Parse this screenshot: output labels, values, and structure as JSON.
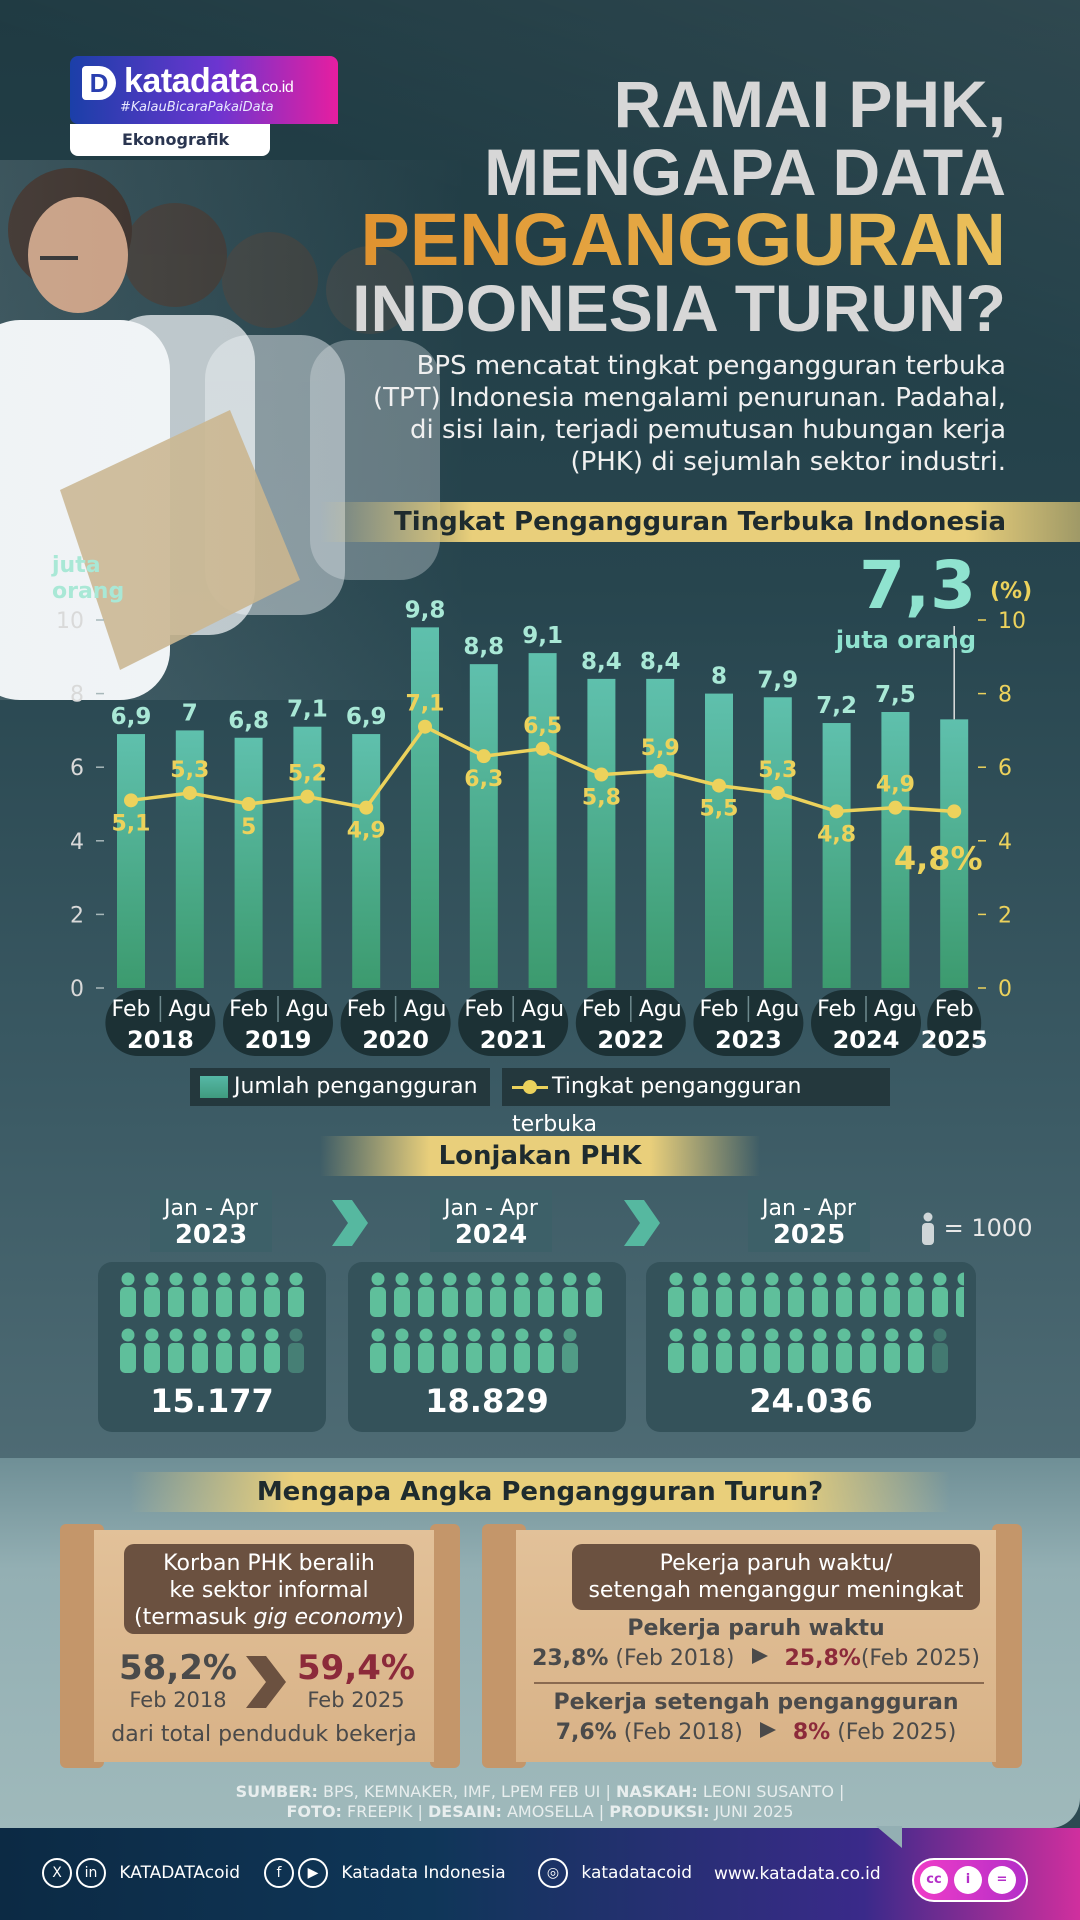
{
  "brand": {
    "name": "katadata",
    "tld": ".co.id",
    "tagline": "#KalauBicaraPakaiData",
    "section": "Ekonografik",
    "mark": "D"
  },
  "title": {
    "line1": "RAMAI PHK,",
    "line2": "MENGAPA DATA",
    "line3": "PENGANGGURAN",
    "line4": "INDONESIA TURUN?"
  },
  "intro": "BPS mencatat tingkat pengangguran terbuka (TPT) Indonesia mengalami penurunan. Padahal, di sisi lain, terjadi pemutusan hubungan kerja (PHK) di sejumlah sektor industri.",
  "chart_data": {
    "type": "bar",
    "title": "Tingkat Pengangguran Terbuka Indonesia",
    "ylabel_left": "juta orang",
    "ylabel_right": "(%)",
    "ylim": [
      0,
      10
    ],
    "yticks": [
      0,
      2,
      4,
      6,
      8,
      10
    ],
    "categories": [
      "Feb 2018",
      "Agu 2018",
      "Feb 2019",
      "Agu 2019",
      "Feb 2020",
      "Agu 2020",
      "Feb 2021",
      "Agu 2021",
      "Feb 2022",
      "Agu 2022",
      "Feb 2023",
      "Agu 2023",
      "Feb 2024",
      "Agu 2024",
      "Feb 2025"
    ],
    "months": [
      "Feb",
      "Agu",
      "Feb",
      "Agu",
      "Feb",
      "Agu",
      "Feb",
      "Agu",
      "Feb",
      "Agu",
      "Feb",
      "Agu",
      "Feb",
      "Agu",
      "Feb"
    ],
    "years": [
      "2018",
      "2019",
      "2020",
      "2021",
      "2022",
      "2023",
      "2024",
      "2025"
    ],
    "series": [
      {
        "name": "Jumlah pengangguran",
        "type": "bar",
        "values": [
          6.9,
          7,
          6.8,
          7.1,
          6.9,
          9.8,
          8.8,
          9.1,
          8.4,
          8.4,
          8,
          7.9,
          7.2,
          7.5,
          7.3
        ],
        "labels": [
          "6,9",
          "7",
          "6,8",
          "7,1",
          "6,9",
          "9,8",
          "8,8",
          "9,1",
          "8,4",
          "8,4",
          "8",
          "7,9",
          "7,2",
          "7,5",
          ""
        ]
      },
      {
        "name": "Tingkat pengangguran terbuka",
        "type": "line",
        "values": [
          5.1,
          5.3,
          5,
          5.2,
          4.9,
          7.1,
          6.3,
          6.5,
          5.8,
          5.9,
          5.5,
          5.3,
          4.8,
          4.9,
          4.8
        ],
        "labels": [
          "5,1",
          "5,3",
          "5",
          "5,2",
          "4,9",
          "7,1",
          "6,3",
          "6,5",
          "5,8",
          "5,9",
          "5,5",
          "5,3",
          "4,8",
          "4,9",
          "4,8%"
        ]
      }
    ],
    "highlight": {
      "value": "7,3",
      "unit": "juta orang"
    },
    "colors": {
      "bar_top": "#5fc0ad",
      "bar_bottom": "#3c9a6e",
      "line": "#ecd25c",
      "label_bar": "#a9e8d6"
    }
  },
  "phk": {
    "title": "Lonjakan PHK",
    "key": "= 1000",
    "periods": [
      {
        "range": "Jan - Apr",
        "year": "2023",
        "value": "15.177"
      },
      {
        "range": "Jan - Apr",
        "year": "2024",
        "value": "18.829"
      },
      {
        "range": "Jan - Apr",
        "year": "2025",
        "value": "24.036"
      }
    ]
  },
  "why": {
    "title": "Mengapa Angka Pengangguran Turun?",
    "left": {
      "heading1": "Korban PHK beralih",
      "heading2": "ke sektor informal",
      "heading3a": "(termasuk ",
      "heading3b": "gig economy",
      "heading3c": ")",
      "from_val": "58,2%",
      "from_label": "Feb 2018",
      "to_val": "59,4%",
      "to_label": "Feb 2025",
      "note": "dari total penduduk bekerja"
    },
    "right": {
      "heading1": "Pekerja paruh waktu/",
      "heading2": "setengah menganggur meningkat",
      "sub1": "Pekerja paruh waktu",
      "sub1_from": "23,8%",
      "sub1_from_label": "(Feb 2018)",
      "sub1_to": "25,8%",
      "sub1_to_label": "(Feb 2025)",
      "sub2": "Pekerja setengah pengangguran",
      "sub2_from": "7,6%",
      "sub2_from_label": "(Feb 2018)",
      "sub2_to": "8%",
      "sub2_to_label": "(Feb 2025)"
    }
  },
  "credits": {
    "line1_a": "SUMBER:",
    "line1_b": " BPS, KEMNAKER, IMF, LPEM FEB UI | ",
    "line1_c": "NASKAH:",
    "line1_d": " LEONI SUSANTO |",
    "line2_a": "FOTO:",
    "line2_b": " FREEPIK | ",
    "line2_c": "DESAIN:",
    "line2_d": " AMOSELLA | ",
    "line2_e": "PRODUKSI:",
    "line2_f": " JUNI 2025"
  },
  "footer": {
    "handle1": "KATADATAcoid",
    "handle2": "Katadata Indonesia",
    "handle3": "katadatacoid",
    "site": "www.katadata.co.id"
  }
}
